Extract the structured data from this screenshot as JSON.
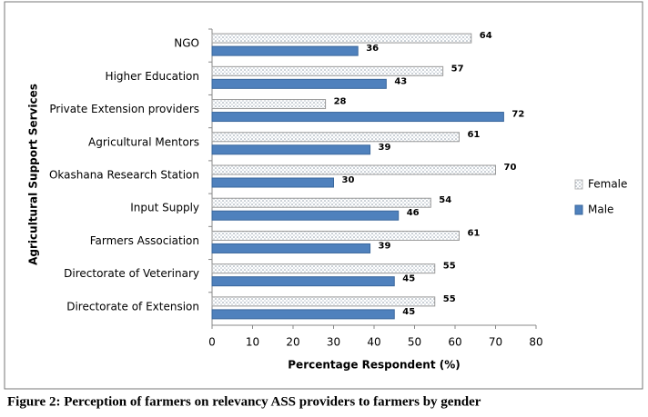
{
  "chart_data": {
    "type": "bar",
    "orientation": "horizontal",
    "caption": "Figure 2: Perception of farmers on relevancy ASS providers to farmers by gender",
    "xlabel": "Percentage Respondent (%)",
    "ylabel": "Agricultural Support Services",
    "categories": [
      "NGO",
      "Higher Education",
      "Private Extension providers",
      "Agricultural Mentors",
      "Okashana Research Station",
      "Input Supply",
      "Farmers Association",
      "Directorate of Veterinary",
      "Directorate of Extension"
    ],
    "series": [
      {
        "name": "Female",
        "color": "#d9d9d9",
        "values": [
          64,
          57,
          28,
          61,
          70,
          54,
          61,
          55,
          55
        ]
      },
      {
        "name": "Male",
        "color": "#4f81bd",
        "values": [
          36,
          43,
          72,
          39,
          30,
          46,
          39,
          45,
          45
        ]
      }
    ],
    "xlim": [
      0,
      80
    ],
    "xticks": [
      0,
      10,
      20,
      30,
      40,
      50,
      60,
      70,
      80
    ],
    "legend": "right"
  }
}
